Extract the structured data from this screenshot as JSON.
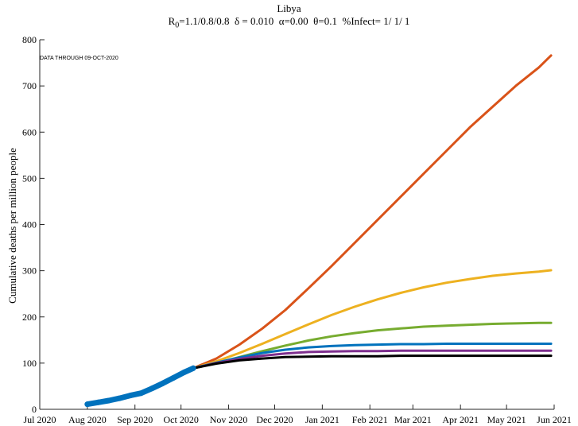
{
  "chart_data": {
    "type": "line",
    "title": "Libya",
    "subtitle": "R0=1.1/0.8/0.8  δ = 0.010  α=0.00  θ=0.1  %Infect= 1/ 1/ 1",
    "subtitle_parts": {
      "r_symbol": "R",
      "r_subscript": "0",
      "r_values": "=1.1/0.8/0.8",
      "delta": "δ = 0.010",
      "alpha": "α=0.00",
      "theta": "θ=0.1",
      "infect": "%Infect= 1/ 1/ 1"
    },
    "annotation": "DATA THROUGH 09-OCT-2020",
    "xlabel": "",
    "ylabel": "Cumulative deaths per million people",
    "xlim": [
      "2020-07-01",
      "2021-06-01"
    ],
    "ylim": [
      0,
      800
    ],
    "x_ticks": [
      "2020-07-01",
      "2020-08-01",
      "2020-09-01",
      "2020-10-01",
      "2020-11-01",
      "2020-12-01",
      "2021-01-01",
      "2021-02-01",
      "2021-03-01",
      "2021-04-01",
      "2021-05-01",
      "2021-06-01"
    ],
    "x_tick_labels": [
      "Jul 2020",
      "Aug 2020",
      "Sep 2020",
      "Oct 2020",
      "Nov 2020",
      "Dec 2020",
      "Jan 2021",
      "Feb 2021",
      "Mar 2021",
      "Apr 2021",
      "May 2021",
      "Jun 2021"
    ],
    "y_ticks": [
      0,
      100,
      200,
      300,
      400,
      500,
      600,
      700,
      800
    ],
    "y_tick_labels": [
      "0",
      "100",
      "200",
      "300",
      "400",
      "500",
      "600",
      "700",
      "800"
    ],
    "grid": false,
    "observed": {
      "color": "#0072BD",
      "points": [
        [
          "2020-08-01",
          11
        ],
        [
          "2020-08-08",
          15
        ],
        [
          "2020-08-15",
          19
        ],
        [
          "2020-08-22",
          24
        ],
        [
          "2020-08-29",
          30
        ],
        [
          "2020-09-05",
          35
        ],
        [
          "2020-09-12",
          45
        ],
        [
          "2020-09-19",
          56
        ],
        [
          "2020-09-26",
          68
        ],
        [
          "2020-10-03",
          80
        ],
        [
          "2020-10-09",
          89
        ]
      ]
    },
    "series": [
      {
        "color": "#D95319",
        "values": [
          [
            "2020-10-09",
            89
          ],
          [
            "2020-10-24",
            110
          ],
          [
            "2020-11-08",
            140
          ],
          [
            "2020-11-23",
            175
          ],
          [
            "2020-12-08",
            215
          ],
          [
            "2020-12-23",
            262
          ],
          [
            "2021-01-07",
            310
          ],
          [
            "2021-01-22",
            360
          ],
          [
            "2021-02-06",
            410
          ],
          [
            "2021-02-21",
            460
          ],
          [
            "2021-03-08",
            510
          ],
          [
            "2021-03-23",
            560
          ],
          [
            "2021-04-07",
            610
          ],
          [
            "2021-04-22",
            655
          ],
          [
            "2021-05-07",
            700
          ],
          [
            "2021-05-22",
            740
          ],
          [
            "2021-05-30",
            766
          ]
        ]
      },
      {
        "color": "#EDB120",
        "values": [
          [
            "2020-10-09",
            89
          ],
          [
            "2020-10-24",
            104
          ],
          [
            "2020-11-08",
            122
          ],
          [
            "2020-11-23",
            142
          ],
          [
            "2020-12-08",
            163
          ],
          [
            "2020-12-23",
            184
          ],
          [
            "2021-01-07",
            204
          ],
          [
            "2021-01-22",
            222
          ],
          [
            "2021-02-06",
            238
          ],
          [
            "2021-02-21",
            252
          ],
          [
            "2021-03-08",
            264
          ],
          [
            "2021-03-23",
            274
          ],
          [
            "2021-04-07",
            282
          ],
          [
            "2021-04-22",
            289
          ],
          [
            "2021-05-07",
            294
          ],
          [
            "2021-05-22",
            298
          ],
          [
            "2021-05-30",
            301
          ]
        ]
      },
      {
        "color": "#77AC30",
        "values": [
          [
            "2020-10-09",
            89
          ],
          [
            "2020-10-24",
            100
          ],
          [
            "2020-11-08",
            113
          ],
          [
            "2020-11-23",
            126
          ],
          [
            "2020-12-08",
            138
          ],
          [
            "2020-12-23",
            149
          ],
          [
            "2021-01-07",
            158
          ],
          [
            "2021-01-22",
            165
          ],
          [
            "2021-02-06",
            171
          ],
          [
            "2021-02-21",
            175
          ],
          [
            "2021-03-08",
            179
          ],
          [
            "2021-03-23",
            181
          ],
          [
            "2021-04-07",
            183
          ],
          [
            "2021-04-22",
            185
          ],
          [
            "2021-05-07",
            186
          ],
          [
            "2021-05-22",
            187
          ],
          [
            "2021-05-30",
            187
          ]
        ]
      },
      {
        "color": "#0072BD",
        "values": [
          [
            "2020-10-09",
            89
          ],
          [
            "2020-10-24",
            101
          ],
          [
            "2020-11-08",
            112
          ],
          [
            "2020-11-23",
            122
          ],
          [
            "2020-12-08",
            129
          ],
          [
            "2020-12-23",
            134
          ],
          [
            "2021-01-07",
            137
          ],
          [
            "2021-01-22",
            139
          ],
          [
            "2021-02-06",
            140
          ],
          [
            "2021-02-21",
            141
          ],
          [
            "2021-03-08",
            141
          ],
          [
            "2021-03-23",
            142
          ],
          [
            "2021-04-07",
            142
          ],
          [
            "2021-04-22",
            142
          ],
          [
            "2021-05-07",
            142
          ],
          [
            "2021-05-22",
            142
          ],
          [
            "2021-05-30",
            142
          ]
        ]
      },
      {
        "color": "#7E2F8E",
        "values": [
          [
            "2020-10-09",
            89
          ],
          [
            "2020-10-24",
            100
          ],
          [
            "2020-11-08",
            109
          ],
          [
            "2020-11-23",
            116
          ],
          [
            "2020-12-08",
            121
          ],
          [
            "2020-12-23",
            124
          ],
          [
            "2021-01-07",
            125
          ],
          [
            "2021-01-22",
            126
          ],
          [
            "2021-02-06",
            126
          ],
          [
            "2021-02-21",
            127
          ],
          [
            "2021-03-08",
            127
          ],
          [
            "2021-03-23",
            127
          ],
          [
            "2021-04-07",
            127
          ],
          [
            "2021-04-22",
            127
          ],
          [
            "2021-05-07",
            127
          ],
          [
            "2021-05-22",
            127
          ],
          [
            "2021-05-30",
            127
          ]
        ]
      },
      {
        "color": "#000000",
        "values": [
          [
            "2020-10-09",
            89
          ],
          [
            "2020-10-24",
            99
          ],
          [
            "2020-11-08",
            106
          ],
          [
            "2020-11-23",
            110
          ],
          [
            "2020-12-08",
            113
          ],
          [
            "2020-12-23",
            114
          ],
          [
            "2021-01-07",
            115
          ],
          [
            "2021-01-22",
            115
          ],
          [
            "2021-02-06",
            115
          ],
          [
            "2021-02-21",
            116
          ],
          [
            "2021-03-08",
            116
          ],
          [
            "2021-03-23",
            116
          ],
          [
            "2021-04-07",
            116
          ],
          [
            "2021-04-22",
            116
          ],
          [
            "2021-05-07",
            116
          ],
          [
            "2021-05-22",
            116
          ],
          [
            "2021-05-30",
            116
          ]
        ]
      }
    ]
  }
}
